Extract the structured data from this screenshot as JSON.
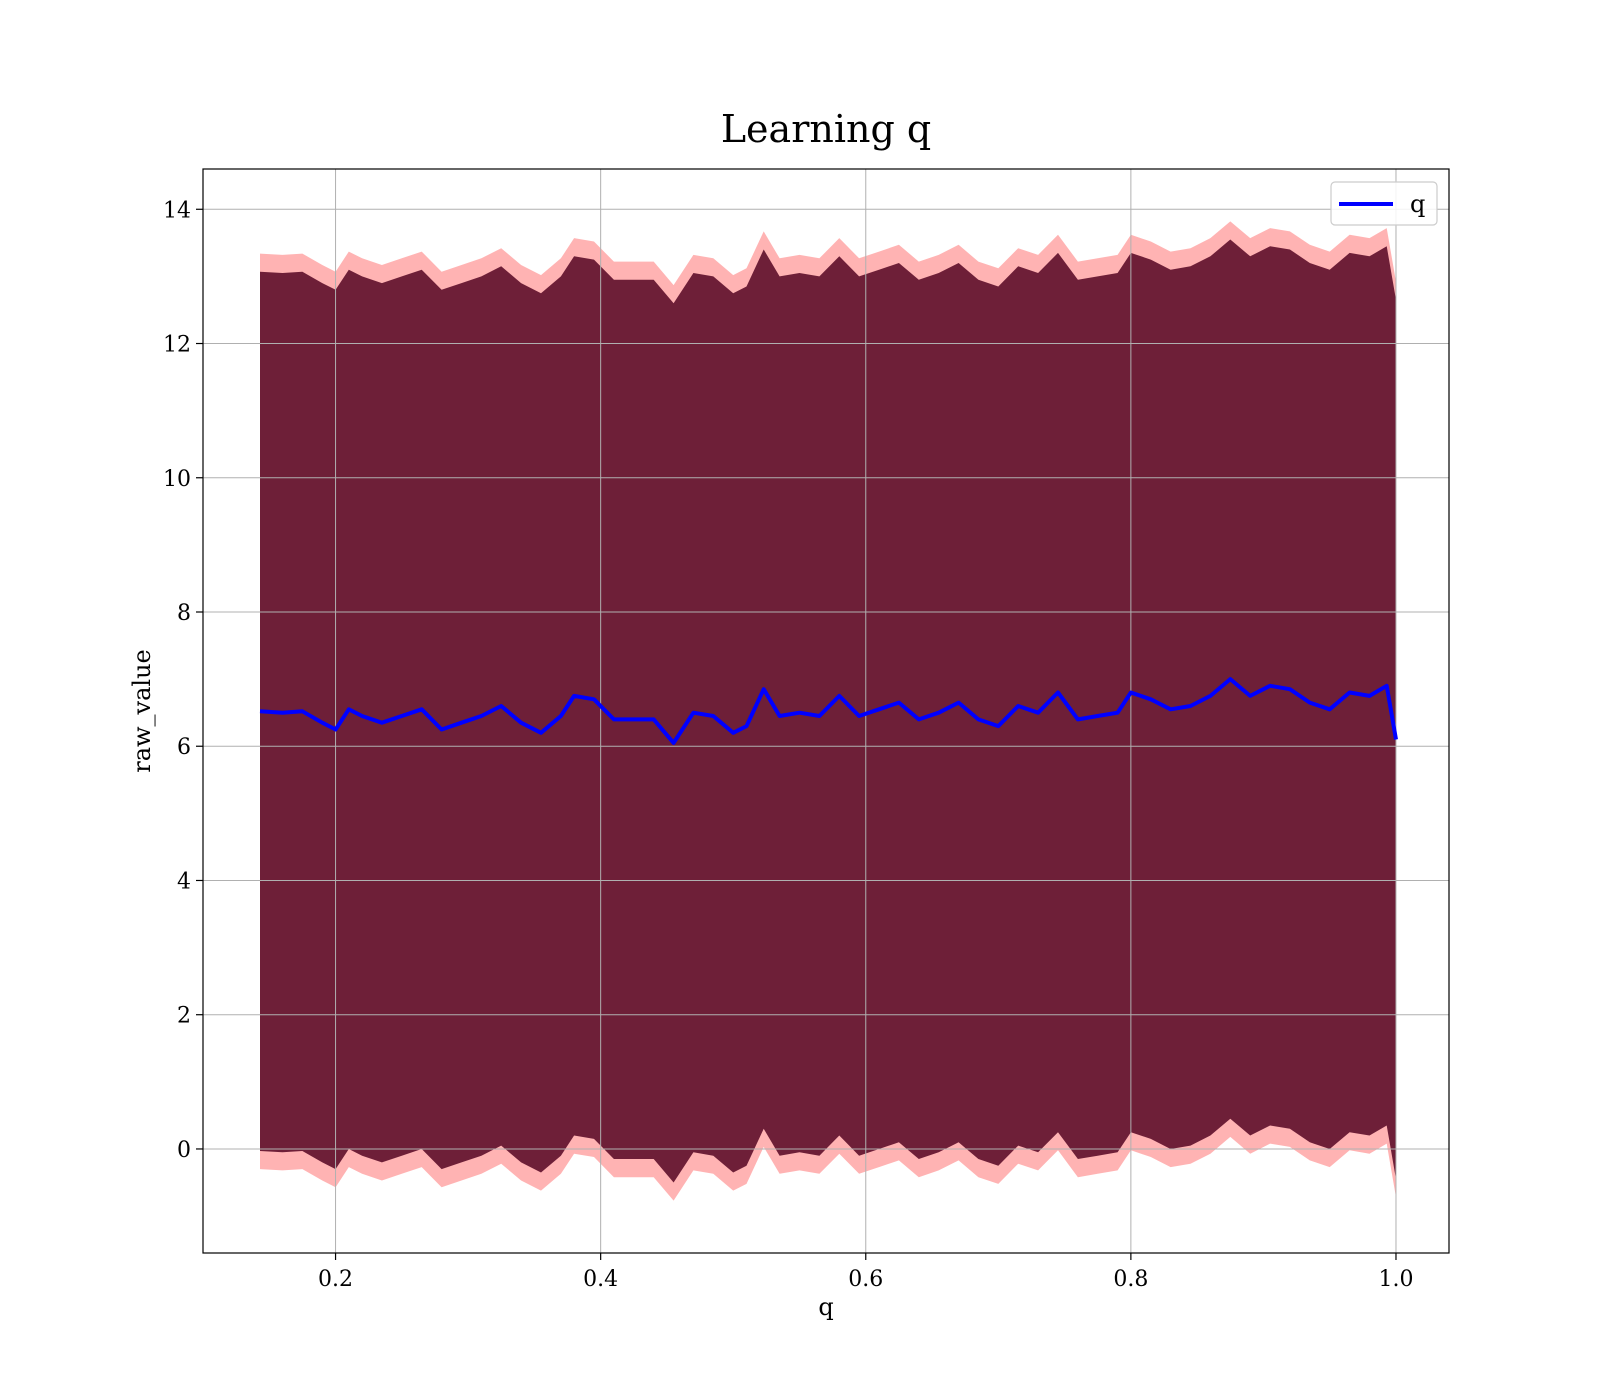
{
  "chart_data": {
    "type": "line",
    "title": "Learning q",
    "xlabel": "q",
    "ylabel": "raw_value",
    "xlim": [
      0.1,
      1.04
    ],
    "ylim": [
      -1.55,
      14.6
    ],
    "xticks": [
      0.2,
      0.4,
      0.6,
      0.8,
      1.0
    ],
    "xtick_labels": [
      "0.2",
      "0.4",
      "0.6",
      "0.8",
      "1.0"
    ],
    "yticks": [
      0,
      2,
      4,
      6,
      8,
      10,
      12,
      14
    ],
    "ytick_labels": [
      "0",
      "2",
      "4",
      "6",
      "8",
      "10",
      "12",
      "14"
    ],
    "grid": true,
    "legend": {
      "position": "top-right",
      "entries": [
        "q"
      ]
    },
    "series": [
      {
        "name": "q",
        "color": "#0000ff",
        "x": [
          0.143,
          0.16,
          0.175,
          0.19,
          0.2,
          0.21,
          0.22,
          0.235,
          0.25,
          0.265,
          0.28,
          0.295,
          0.31,
          0.325,
          0.34,
          0.355,
          0.37,
          0.38,
          0.395,
          0.41,
          0.425,
          0.44,
          0.455,
          0.47,
          0.485,
          0.5,
          0.51,
          0.523,
          0.535,
          0.55,
          0.565,
          0.58,
          0.595,
          0.61,
          0.625,
          0.64,
          0.655,
          0.67,
          0.685,
          0.7,
          0.715,
          0.73,
          0.745,
          0.76,
          0.775,
          0.79,
          0.8,
          0.815,
          0.83,
          0.845,
          0.86,
          0.875,
          0.89,
          0.905,
          0.92,
          0.935,
          0.95,
          0.965,
          0.98,
          0.993,
          1.0
        ],
        "y": [
          6.52,
          6.5,
          6.52,
          6.35,
          6.25,
          6.55,
          6.45,
          6.35,
          6.45,
          6.55,
          6.25,
          6.35,
          6.45,
          6.6,
          6.35,
          6.2,
          6.45,
          6.75,
          6.7,
          6.4,
          6.4,
          6.4,
          6.05,
          6.5,
          6.45,
          6.2,
          6.3,
          6.85,
          6.45,
          6.5,
          6.45,
          6.75,
          6.45,
          6.55,
          6.65,
          6.4,
          6.5,
          6.65,
          6.4,
          6.3,
          6.6,
          6.5,
          6.8,
          6.4,
          6.45,
          6.5,
          6.8,
          6.7,
          6.55,
          6.6,
          6.75,
          7.0,
          6.75,
          6.9,
          6.85,
          6.65,
          6.55,
          6.8,
          6.75,
          6.9,
          6.1
        ],
        "band_offsets": [
          6.55,
          6.3,
          6.82
        ],
        "band_colors": [
          "#6e1f38",
          "#cd6b47",
          "#ff9999"
        ]
      }
    ]
  }
}
